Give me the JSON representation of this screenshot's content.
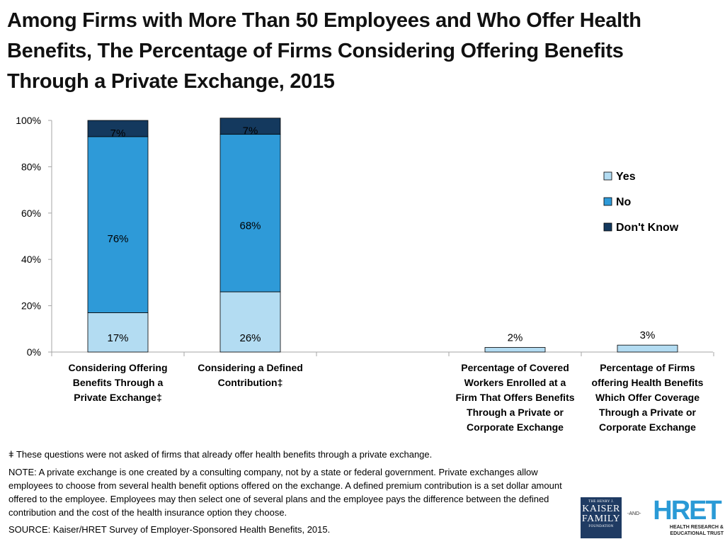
{
  "title": "Among Firms with More Than 50 Employees and Who Offer Health Benefits, The Percentage of Firms Considering Offering Benefits Through a Private Exchange, 2015",
  "colors": {
    "yes": "#b3dcf2",
    "no": "#2e9ad8",
    "dont_know": "#14395e",
    "axis": "#a6a6a6"
  },
  "chart_data": {
    "type": "bar",
    "stacked": true,
    "title": "Among Firms with More Than 50 Employees and Who Offer Health Benefits, The Percentage of Firms Considering Offering Benefits Through a Private Exchange, 2015",
    "ylim": [
      0,
      100
    ],
    "yticks": [
      "0%",
      "20%",
      "40%",
      "60%",
      "80%",
      "100%"
    ],
    "legend_position": "right",
    "categories": [
      "Considering Offering Benefits Through a Private Exchange‡",
      "Considering a Defined Contribution‡",
      "",
      "Percentage of Covered Workers Enrolled at a Firm That Offers Benefits Through a Private or Corporate Exchange",
      "Percentage of Firms offering Health Benefits Which Offer Coverage Through a Private or Corporate Exchange"
    ],
    "category_lines": [
      [
        "Considering Offering",
        "Benefits Through a",
        "Private Exchange‡"
      ],
      [
        "Considering a Defined",
        "Contribution‡"
      ],
      [],
      [
        "Percentage of Covered",
        "Workers Enrolled at a",
        "Firm That Offers Benefits",
        "Through a Private or",
        "Corporate Exchange"
      ],
      [
        "Percentage of Firms",
        "offering Health Benefits",
        "Which Offer Coverage",
        "Through a Private or",
        "Corporate Exchange"
      ]
    ],
    "series": [
      {
        "name": "Yes",
        "values": [
          17,
          26,
          null,
          2,
          3
        ],
        "labels": [
          "17%",
          "26%",
          "",
          "2%",
          "3%"
        ]
      },
      {
        "name": "No",
        "values": [
          76,
          68,
          null,
          null,
          null
        ],
        "labels": [
          "76%",
          "68%",
          "",
          "",
          ""
        ]
      },
      {
        "name": "Don't Know",
        "values": [
          7,
          7,
          null,
          null,
          null
        ],
        "labels": [
          "7%",
          "7%",
          "",
          "",
          ""
        ]
      }
    ]
  },
  "footnotes": {
    "dagger": "ǂ These questions were not asked of firms that already offer health benefits through a private exchange.",
    "note": "NOTE: A private exchange is one created by a consulting company, not by a state or federal government. Private exchanges allow employees to choose from several health benefit options offered on the exchange. A defined premium contribution is a set dollar amount offered to the employee. Employees may then select one of several plans and the employee pays the difference between the defined contribution and the cost of the health insurance option they choose.",
    "source": "SOURCE: Kaiser/HRET Survey of Employer-Sponsored Health Benefits, 2015."
  },
  "logos": {
    "kff_line1": "THE HENRY J.",
    "kff_line2": "KAISER",
    "kff_line3": "FAMILY",
    "kff_line4": "FOUNDATION",
    "and_text": "-AND-",
    "hret_name": "HRET",
    "hret_line1": "HEALTH RESEARCH &",
    "hret_line2": "EDUCATIONAL TRUST"
  }
}
